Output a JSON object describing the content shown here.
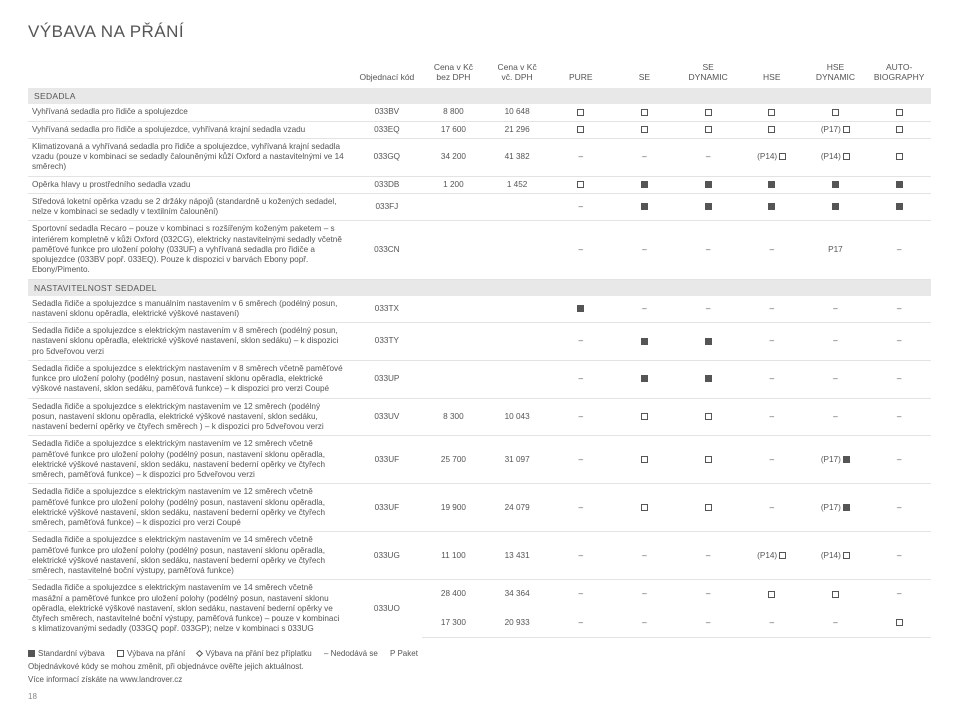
{
  "title": "VÝBAVA NA PŘÁNÍ",
  "headers": {
    "desc": "",
    "code": "Objednací kód",
    "price_ex": "Cena v Kč\nbez DPH",
    "price_inc": "Cena v Kč\nvč. DPH",
    "trims": [
      "PURE",
      "SE",
      "SE\nDYNAMIC",
      "HSE",
      "HSE\nDYNAMIC",
      "AUTO-\nBIOGRAPHY"
    ]
  },
  "sections": [
    {
      "title": "SEDADLA",
      "rows": [
        {
          "desc": "Vyhřívaná sedadla pro řidiče a spolujezdce",
          "code": "033BV",
          "p1": "8 800",
          "p2": "10 648",
          "cells": [
            "opt",
            "opt",
            "opt",
            "opt",
            "opt",
            "opt"
          ]
        },
        {
          "desc": "Vyhřívaná sedadla pro řidiče a spolujezdce, vyhřívaná krajní sedadla vzadu",
          "code": "033EQ",
          "p1": "17 600",
          "p2": "21 296",
          "cells": [
            "opt",
            "opt",
            "opt",
            "opt",
            "(P17) opt",
            "opt"
          ]
        },
        {
          "desc": "Klimatizovaná a vyhřívaná sedadla pro řidiče a spolujezdce, vyhřívaná krajní sedadla vzadu (pouze v kombinaci se sedadly čalouněnými kůží Oxford a nastavitelnými ve 14 směrech)",
          "code": "033GQ",
          "p1": "34 200",
          "p2": "41 382",
          "cells": [
            "–",
            "–",
            "–",
            "(P14) opt",
            "(P14) opt",
            "opt"
          ]
        },
        {
          "desc": "Opěrka hlavy u prostředního sedadla vzadu",
          "code": "033DB",
          "p1": "1 200",
          "p2": "1 452",
          "cells": [
            "opt",
            "std",
            "std",
            "std",
            "std",
            "std"
          ]
        },
        {
          "desc": "Středová loketní opěrka vzadu se 2 držáky nápojů (standardně u kožených sedadel, nelze v kombinaci se sedadly v textilním čalounění)",
          "code": "033FJ",
          "p1": "",
          "p2": "",
          "cells": [
            "–",
            "std",
            "std",
            "std",
            "std",
            "std"
          ]
        },
        {
          "desc": "Sportovní sedadla Recaro – pouze v kombinaci s rozšířeným koženým paketem – s interiérem kompletně v kůži Oxford (032CG), elektricky nastavitelnými sedadly včetně paměťové funkce pro uložení polohy (033UF) a vyhřívaná sedadla pro řidiče a spolujezdce (033BV popř. 033EQ). Pouze k dispozici v barvách Ebony popř. Ebony/Pimento.",
          "code": "033CN",
          "p1": "",
          "p2": "",
          "cells": [
            "–",
            "–",
            "–",
            "–",
            "P17",
            "–"
          ]
        }
      ]
    },
    {
      "title": "NASTAVITELNOST SEDADEL",
      "rows": [
        {
          "desc": "Sedadla řidiče a spolujezdce s manuálním nastavením v 6 směrech (podélný posun, nastavení sklonu opěradla, elektrické výškové nastavení)",
          "code": "033TX",
          "p1": "",
          "p2": "",
          "cells": [
            "std",
            "–",
            "–",
            "–",
            "–",
            "–"
          ]
        },
        {
          "desc": "Sedadla řidiče a spolujezdce s elektrickým nastavením v 8 směrech (podélný posun, nastavení sklonu opěradla, elektrické výškové nastavení, sklon sedáku) – k dispozici pro 5dveřovou verzi",
          "code": "033TY",
          "p1": "",
          "p2": "",
          "cells": [
            "–",
            "std",
            "std",
            "–",
            "–",
            "–"
          ]
        },
        {
          "desc": "Sedadla řidiče a spolujezdce s elektrickým nastavením v 8 směrech včetně paměťové funkce pro uložení polohy (podélný posun, nastavení sklonu opěradla, elektrické výškové nastavení, sklon sedáku, paměťová funkce) – k dispozici pro verzi Coupé",
          "code": "033UP",
          "p1": "",
          "p2": "",
          "cells": [
            "–",
            "std",
            "std",
            "–",
            "–",
            "–"
          ]
        },
        {
          "desc": "Sedadla řidiče a spolujezdce s elektrickým nastavením ve 12 směrech (podélný posun, nastavení sklonu opěradla, elektrické výškové nastavení, sklon sedáku, nastavení bederní opěrky ve čtyřech směrech ) – k dispozici pro 5dveřovou verzi",
          "code": "033UV",
          "p1": "8 300",
          "p2": "10 043",
          "cells": [
            "–",
            "opt",
            "opt",
            "–",
            "–",
            "–"
          ]
        },
        {
          "desc": "Sedadla řidiče a spolujezdce s elektrickým nastavením ve 12 směrech včetně paměťové funkce pro uložení polohy (podélný posun, nastavení sklonu opěradla, elektrické výškové nastavení, sklon sedáku, nastavení bederní opěrky ve čtyřech směrech, paměťová funkce) – k dispozici pro 5dveřovou verzi",
          "code": "033UF",
          "p1": "25 700",
          "p2": "31 097",
          "cells": [
            "–",
            "opt",
            "opt",
            "–",
            "(P17) std",
            "–"
          ]
        },
        {
          "desc": "Sedadla řidiče a spolujezdce s elektrickým nastavením ve 12 směrech včetně paměťové funkce pro uložení polohy (podélný posun, nastavení sklonu opěradla, elektrické výškové nastavení, sklon sedáku, nastavení bederní opěrky ve čtyřech směrech, paměťová funkce) – k dispozici pro verzi Coupé",
          "code": "033UF",
          "p1": "19 900",
          "p2": "24 079",
          "cells": [
            "–",
            "opt",
            "opt",
            "–",
            "(P17) std",
            "–"
          ]
        },
        {
          "desc": "Sedadla řidiče a spolujezdce s elektrickým nastavením ve 14 směrech včetně paměťové funkce pro uložení polohy (podélný posun, nastavení sklonu opěradla, elektrické výškové nastavení, sklon sedáku, nastavení bederní opěrky ve čtyřech směrech, nastavitelné boční výstupy, paměťová funkce)",
          "code": "033UG",
          "p1": "11 100",
          "p2": "13 431",
          "cells": [
            "–",
            "–",
            "–",
            "(P14) opt",
            "(P14) opt",
            "–"
          ]
        },
        {
          "desc": "Sedadla řidiče a spolujezdce s elektrickým nastavením ve 14 směrech včetně masážní a paměťové funkce pro uložení polohy (podélný posun, nastavení sklonu opěradla, elektrické výškové nastavení, sklon sedáku, nastavení bederní opěrky ve čtyřech směrech, nastavitelné boční výstupy, paměťová funkce) – pouze v kombinaci s klimatizovanými sedadly (033GQ popř. 033GP); nelze v kombinaci s 033UG",
          "code": "033UO",
          "p1a": "28 400",
          "p2a": "34 364",
          "p1b": "17 300",
          "p2b": "20 933",
          "cells_a": [
            "–",
            "–",
            "–",
            "opt",
            "opt",
            "–"
          ],
          "cells_b": [
            "–",
            "–",
            "–",
            "–",
            "–",
            "opt"
          ],
          "dual": true
        }
      ]
    }
  ],
  "legend": {
    "std": "Standardní výbava",
    "opt": "Výbava na přání",
    "noex": "Výbava na přání bez příplatku",
    "dash": "– Nedodává se",
    "p": "P Paket"
  },
  "footnote1": "Objednávkové kódy se mohou změnit, při objednávce ověřte jejich aktuálnost.",
  "footnote2": "Více informací získáte na www.landrover.cz",
  "pagenum": "18"
}
